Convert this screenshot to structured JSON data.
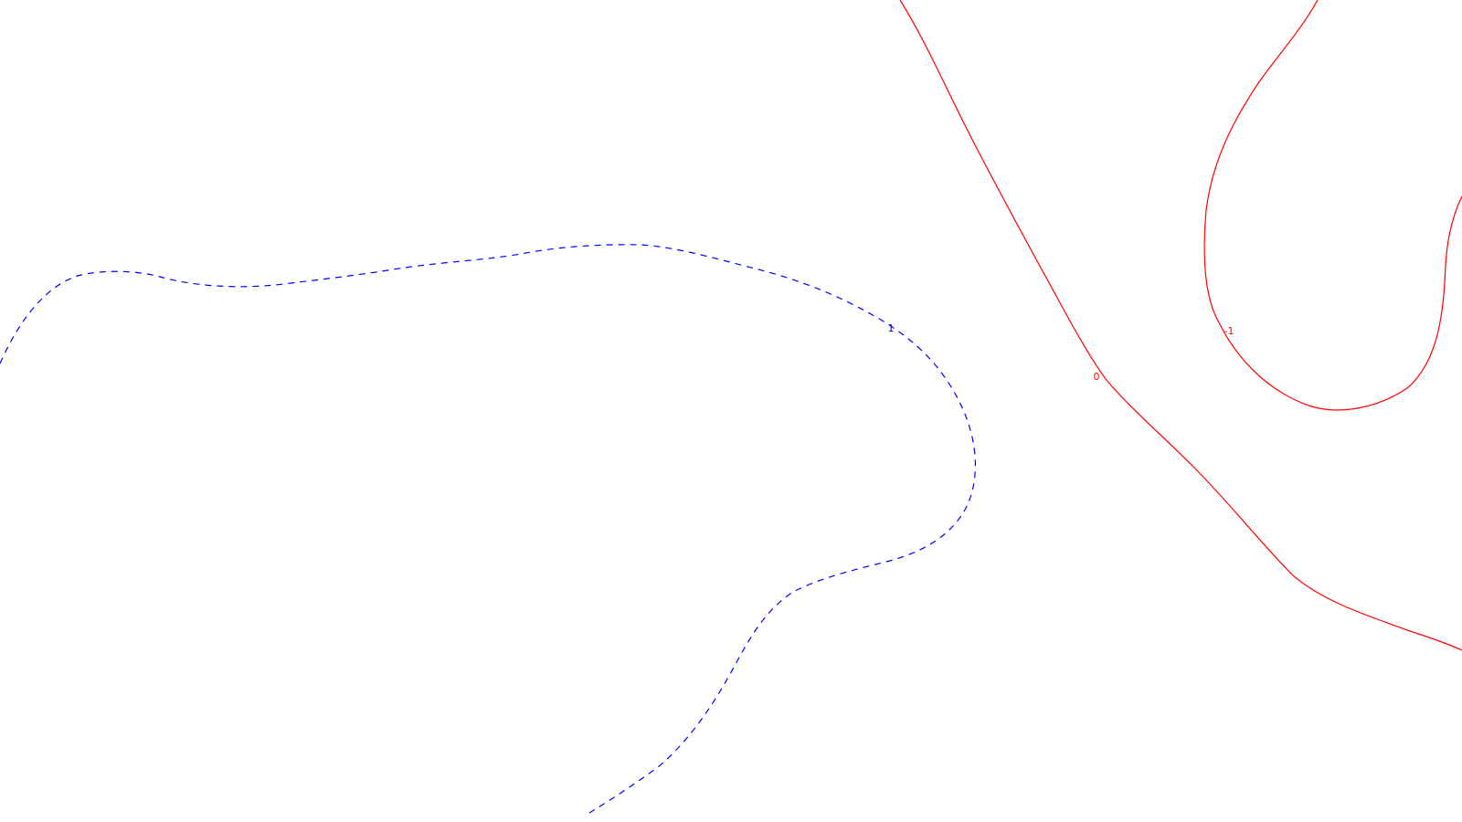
{
  "contours": [
    {
      "level_label": "1",
      "color": "#0000ff",
      "line_style": "dashed"
    },
    {
      "level_label": "0",
      "color": "#ff0000",
      "line_style": "solid"
    },
    {
      "level_label": "-1",
      "color": "#ff0000",
      "line_style": "solid"
    }
  ]
}
